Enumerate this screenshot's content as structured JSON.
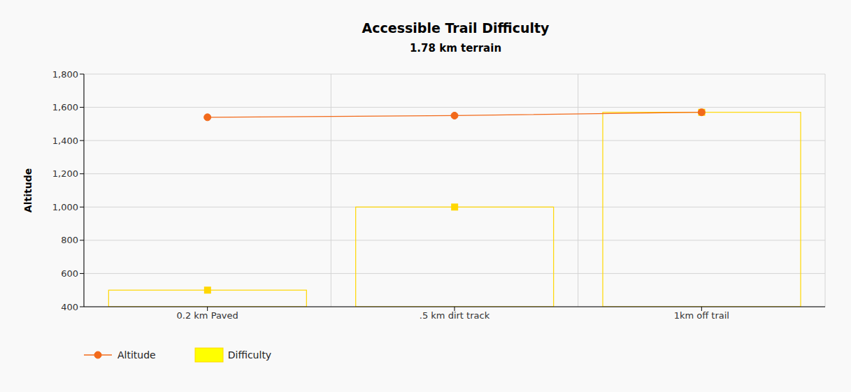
{
  "chart_data": {
    "type": "bar",
    "title": "Accessible Trail Difficulty",
    "subtitle": "1.78 km terrain",
    "y_label": "Altitude",
    "categories": [
      "0.2 km Paved",
      ".5 km dirt track",
      "1km off trail"
    ],
    "series": [
      {
        "name": "Altitude",
        "type": "line",
        "color": "#f26a1b",
        "marker": "circle",
        "values": [
          1540,
          1550,
          1570
        ]
      },
      {
        "name": "Difficulty",
        "type": "bar",
        "color": "#ffd700",
        "marker": "square",
        "values": [
          500,
          1000,
          1570
        ]
      }
    ],
    "ylim": [
      400,
      1800
    ],
    "yticks": [
      400,
      600,
      800,
      {
        "value": 1000,
        "label": "1,000"
      },
      {
        "value": 1200,
        "label": "1,200"
      },
      {
        "value": 1400,
        "label": "1,400"
      },
      {
        "value": 1600,
        "label": "1,600"
      },
      {
        "value": 1800,
        "label": "1,800"
      }
    ],
    "grid": true,
    "legend": "bottom-left"
  }
}
